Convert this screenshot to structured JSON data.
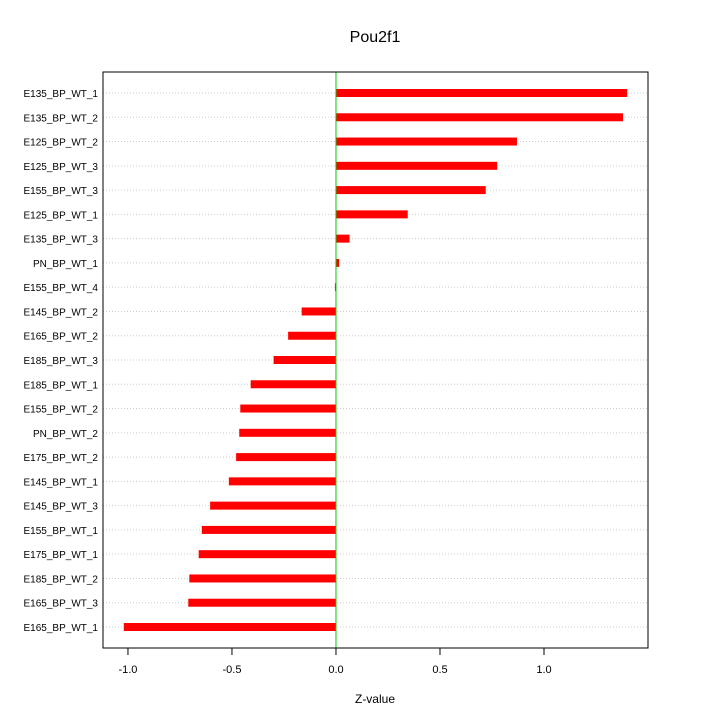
{
  "chart_data": {
    "type": "bar",
    "orientation": "horizontal",
    "title": "Pou2f1",
    "xlabel": "Z-value",
    "ylabel": "",
    "xlim": [
      -1.12,
      1.5
    ],
    "xticks": [
      -1.0,
      -0.5,
      0.0,
      0.5,
      1.0
    ],
    "xtick_labels": [
      "-1.0",
      "-0.5",
      "0.0",
      "0.5",
      "1.0"
    ],
    "grid": "horizontal dotted",
    "categories": [
      "E135_BP_WT_1",
      "E135_BP_WT_2",
      "E125_BP_WT_2",
      "E125_BP_WT_3",
      "E155_BP_WT_3",
      "E125_BP_WT_1",
      "E135_BP_WT_3",
      "PN_BP_WT_1",
      "E155_BP_WT_4",
      "E145_BP_WT_2",
      "E165_BP_WT_2",
      "E185_BP_WT_3",
      "E185_BP_WT_1",
      "E155_BP_WT_2",
      "PN_BP_WT_2",
      "E175_BP_WT_2",
      "E145_BP_WT_1",
      "E145_BP_WT_3",
      "E155_BP_WT_1",
      "E175_BP_WT_1",
      "E185_BP_WT_2",
      "E165_BP_WT_3",
      "E165_BP_WT_1"
    ],
    "values": [
      1.4,
      1.38,
      0.87,
      0.775,
      0.72,
      0.345,
      0.065,
      0.015,
      -0.005,
      -0.165,
      -0.23,
      -0.3,
      -0.41,
      -0.46,
      -0.465,
      -0.48,
      -0.515,
      -0.605,
      -0.645,
      -0.66,
      -0.705,
      -0.71,
      -1.02
    ],
    "colors": {
      "bar": "#ff0000",
      "zero_line": "#00cc00",
      "grid": "#cccccc",
      "frame": "#000000"
    }
  }
}
